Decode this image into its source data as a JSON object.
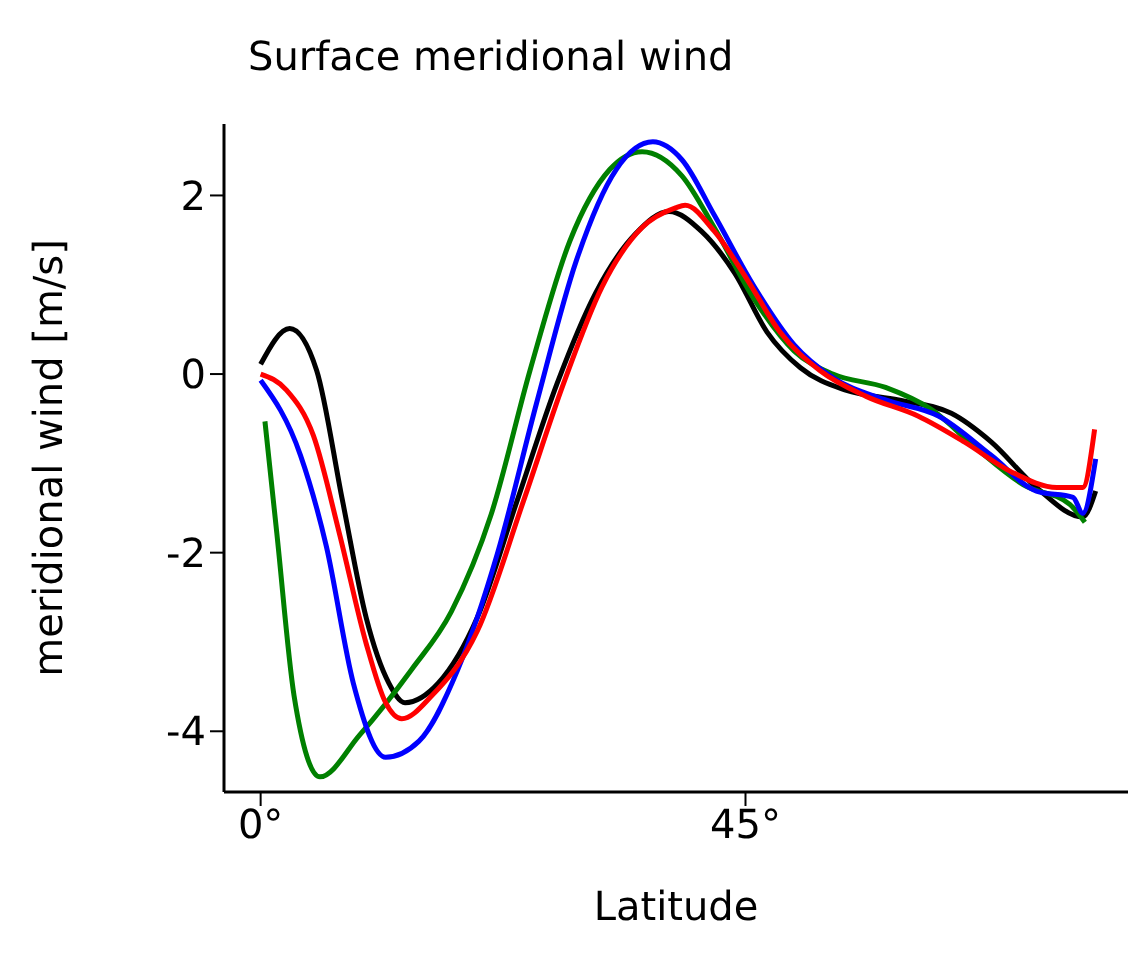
{
  "chart_data": {
    "type": "line",
    "title": "Surface meridional wind",
    "xlabel": "Latitude",
    "ylabel": "meridional wind [m/s]",
    "xlim": [
      -3.4,
      80.5
    ],
    "xticks": [
      {
        "value": 0,
        "label": "0°"
      },
      {
        "value": 45,
        "label": "45°"
      }
    ],
    "ylim": [
      -4.68,
      2.8
    ],
    "yticks": [
      -4,
      -2,
      0,
      2
    ],
    "marker": "none",
    "line_style": "solid",
    "series": [
      {
        "color": "#000000",
        "x": [
          0,
          2.7,
          5.2,
          7.6,
          9.8,
          11.9,
          13.4,
          16.5,
          20.1,
          23.8,
          27.5,
          31.1,
          34.8,
          37.9,
          40.9,
          44.0,
          47.0,
          50.1,
          54.3,
          59.2,
          64.1,
          67.8,
          72.0,
          76.3,
          77.5
        ],
        "values": [
          0.11,
          0.51,
          0.04,
          -1.42,
          -2.73,
          -3.46,
          -3.68,
          -3.46,
          -2.73,
          -1.42,
          -0.11,
          0.91,
          1.57,
          1.82,
          1.6,
          1.13,
          0.47,
          0.07,
          -0.18,
          -0.29,
          -0.44,
          -0.76,
          -1.27,
          -1.6,
          -1.31
        ]
      },
      {
        "color": "#008000",
        "x": [
          0.4,
          1.5,
          3.1,
          5.5,
          9.2,
          14.0,
          17.7,
          21.4,
          25.0,
          28.7,
          32.4,
          35.4,
          39.1,
          42.1,
          45.8,
          49.5,
          53.1,
          58.0,
          62.3,
          66.5,
          70.8,
          75.1,
          76.5
        ],
        "values": [
          -0.53,
          -1.78,
          -3.6,
          -4.51,
          -4.04,
          -3.31,
          -2.66,
          -1.57,
          0.04,
          1.49,
          2.29,
          2.49,
          2.22,
          1.64,
          0.84,
          0.26,
          0,
          -0.15,
          -0.4,
          -0.84,
          -1.24,
          -1.46,
          -1.66
        ]
      },
      {
        "color": "#0000ff",
        "x": [
          0,
          3.7,
          6.1,
          8.6,
          11.6,
          14.7,
          18.3,
          22.0,
          25.6,
          29.3,
          33.0,
          36.4,
          39.1,
          42.1,
          45.8,
          49.5,
          53.1,
          58.0,
          62.9,
          67.8,
          72.0,
          75.4,
          76.3,
          77.5
        ],
        "values": [
          -0.07,
          -0.91,
          -1.93,
          -3.46,
          -4.29,
          -4.11,
          -3.31,
          -2.0,
          -0.33,
          1.27,
          2.29,
          2.6,
          2.4,
          1.78,
          0.98,
          0.33,
          -0.04,
          -0.29,
          -0.47,
          -0.91,
          -1.31,
          -1.38,
          -1.56,
          -0.95
        ]
      },
      {
        "color": "#ff0000",
        "x": [
          0,
          2.4,
          4.9,
          7.3,
          9.8,
          11.6,
          13.1,
          15.9,
          20.1,
          24.4,
          28.1,
          31.7,
          35.4,
          38.5,
          39.4,
          42.1,
          45.2,
          48.2,
          51.9,
          56.2,
          61.0,
          65.3,
          69.6,
          73.9,
          76.3,
          77.4
        ],
        "values": [
          0,
          -0.18,
          -0.69,
          -1.78,
          -3.02,
          -3.68,
          -3.86,
          -3.6,
          -2.88,
          -1.42,
          -0.11,
          0.98,
          1.64,
          1.86,
          1.89,
          1.6,
          1.05,
          0.47,
          0.04,
          -0.25,
          -0.47,
          -0.76,
          -1.09,
          -1.27,
          -1.27,
          -0.62
        ]
      }
    ]
  }
}
